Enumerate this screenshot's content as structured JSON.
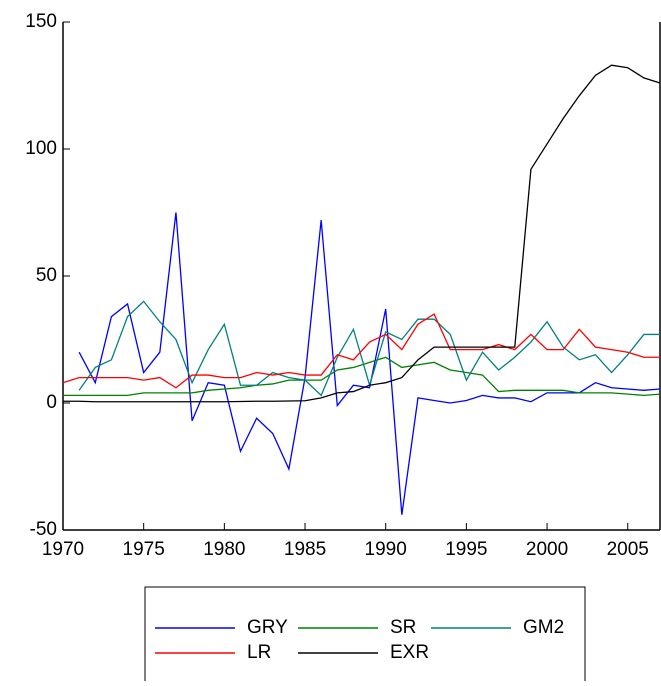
{
  "chart_data": {
    "type": "line",
    "x": [
      1970,
      1971,
      1972,
      1973,
      1974,
      1975,
      1976,
      1977,
      1978,
      1979,
      1980,
      1981,
      1982,
      1983,
      1984,
      1985,
      1986,
      1987,
      1988,
      1989,
      1990,
      1991,
      1992,
      1993,
      1994,
      1995,
      1996,
      1997,
      1998,
      1999,
      2000,
      2001,
      2002,
      2003,
      2004,
      2005,
      2006,
      2007
    ],
    "xlim": [
      1970,
      2007
    ],
    "xticks": [
      1970,
      1975,
      1980,
      1985,
      1990,
      1995,
      2000,
      2005
    ],
    "ylim": [
      -50,
      150
    ],
    "yticks": [
      -50,
      0,
      50,
      100,
      150
    ],
    "series": [
      {
        "name": "GRY",
        "color": "#0000ff",
        "values": [
          null,
          20,
          8,
          34,
          39,
          12,
          20,
          75,
          -7,
          8,
          7,
          -19,
          -6,
          -12,
          -26,
          10,
          72,
          -1,
          7,
          6,
          37,
          -44,
          2,
          1,
          0,
          1,
          3,
          2,
          2,
          0.5,
          4,
          4,
          4,
          8,
          6,
          5.5,
          5,
          5.5
        ]
      },
      {
        "name": "SR",
        "color": "#008000",
        "values": [
          3,
          3,
          3,
          3,
          3,
          4,
          4,
          4,
          4,
          5,
          5.5,
          6,
          7,
          7.5,
          9,
          9,
          9,
          13,
          14,
          16,
          18,
          14,
          15,
          16,
          13,
          12,
          11,
          4.5,
          5,
          5,
          5,
          5,
          4,
          4,
          4,
          3.5,
          3,
          3.5
        ]
      },
      {
        "name": "GM2",
        "color": "#008080",
        "values": [
          null,
          5,
          14,
          17,
          34,
          40,
          32,
          25,
          8,
          21,
          31,
          7,
          7,
          12,
          10,
          9,
          3,
          18,
          29,
          7,
          28,
          25,
          33,
          33,
          27,
          9,
          20,
          13,
          18,
          24,
          32,
          22,
          17,
          19,
          12,
          19,
          27,
          27
        ]
      },
      {
        "name": "LR",
        "color": "#ff0000",
        "values": [
          8,
          10,
          10,
          10,
          10,
          9,
          10,
          6,
          11,
          11,
          10,
          10,
          12,
          11,
          12,
          11,
          11,
          19,
          17,
          24,
          27,
          21,
          31,
          35,
          21,
          21,
          21,
          23,
          21,
          27,
          21,
          21,
          29,
          22,
          21,
          20,
          18,
          18
        ]
      },
      {
        "name": "EXR",
        "color": "#000000",
        "values": [
          0.7,
          0.7,
          0.5,
          0.5,
          0.5,
          0.5,
          0.5,
          0.5,
          0.5,
          0.5,
          0.5,
          0.6,
          0.7,
          0.7,
          0.8,
          0.9,
          2,
          4,
          4.5,
          7,
          8,
          10,
          17,
          22,
          22,
          22,
          22,
          22,
          22,
          92,
          102,
          112,
          121,
          129,
          133,
          132,
          128,
          126
        ]
      }
    ]
  }
}
